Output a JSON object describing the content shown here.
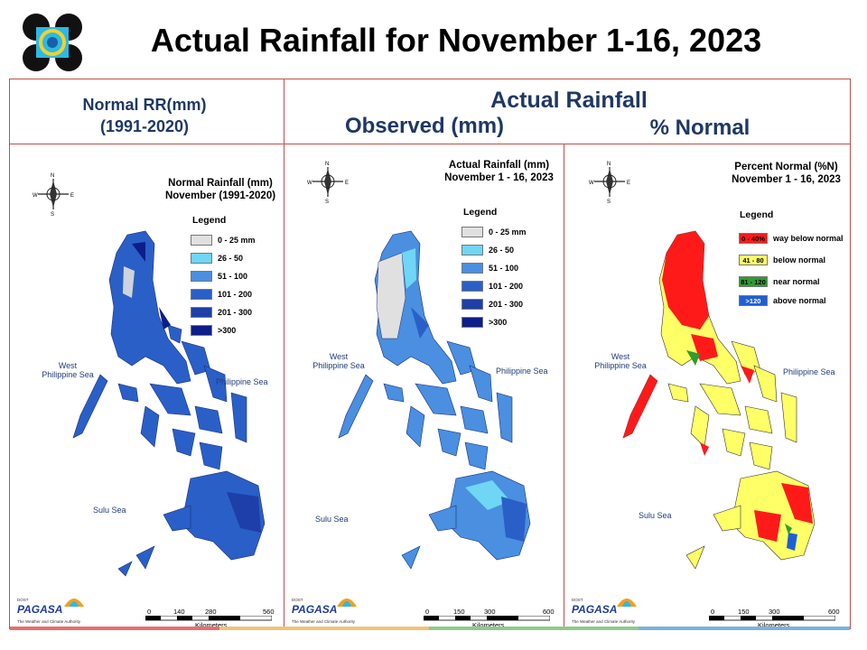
{
  "slide_title": "Actual Rainfall for November 1-16, 2023",
  "headers": {
    "normal_line1": "Normal RR(mm)",
    "normal_line2": "(1991-2020)",
    "actual": "Actual Rainfall",
    "observed": "Observed (mm)",
    "percent": "% Normal"
  },
  "panels": {
    "normal": {
      "title_line1": "Normal Rainfall (mm)",
      "title_line2": "November (1991-2020)",
      "legend_title": "Legend",
      "legend": [
        {
          "label": "0 - 25 mm",
          "color": "#e0e0e0"
        },
        {
          "label": "26 - 50",
          "color": "#6fd6f5"
        },
        {
          "label": "51 - 100",
          "color": "#4a8fe0"
        },
        {
          "label": "101 - 200",
          "color": "#2a5fc8"
        },
        {
          "label": "201 - 300",
          "color": "#1e3ea8"
        },
        {
          "label": ">300",
          "color": "#0d1d8a"
        }
      ],
      "sea_west_line1": "West",
      "sea_west_line2": "Philippine Sea",
      "sea_east": "Philippine Sea",
      "sea_sulu": "Sulu Sea",
      "scale_ticks": [
        "0",
        "140",
        "280",
        "560"
      ],
      "scale_unit": "Kilometers"
    },
    "observed": {
      "title_line1": "Actual Rainfall (mm)",
      "title_line2": "November 1 - 16, 2023",
      "legend_title": "Legend",
      "legend": [
        {
          "label": "0 - 25 mm",
          "color": "#e0e0e0"
        },
        {
          "label": "26 - 50",
          "color": "#6fd6f5"
        },
        {
          "label": "51 - 100",
          "color": "#4a8fe0"
        },
        {
          "label": "101 - 200",
          "color": "#2a5fc8"
        },
        {
          "label": "201 - 300",
          "color": "#1e3ea8"
        },
        {
          "label": ">300",
          "color": "#0d1d8a"
        }
      ],
      "sea_west_line1": "West",
      "sea_west_line2": "Philippine Sea",
      "sea_east": "Philippine Sea",
      "sea_sulu": "Sulu Sea",
      "scale_ticks": [
        "0",
        "150",
        "300",
        "600"
      ],
      "scale_unit": "Kilometers"
    },
    "percent": {
      "title_line1": "Percent Normal (%N)",
      "title_line2": "November 1 - 16, 2023",
      "legend_title": "Legend",
      "legend": [
        {
          "swatch": "0 - 40%",
          "label": "way below normal",
          "color": "#ff1a1a"
        },
        {
          "swatch": "41 - 80",
          "label": "below normal",
          "color": "#ffff66"
        },
        {
          "swatch": "81 - 120",
          "label": "near normal",
          "color": "#2e9e2e"
        },
        {
          "swatch": ">120",
          "label": "above normal",
          "color": "#1f5fd6"
        }
      ],
      "sea_west_line1": "West",
      "sea_west_line2": "Philippine Sea",
      "sea_east": "Philippine Sea",
      "sea_sulu": "Sulu Sea",
      "scale_ticks": [
        "0",
        "150",
        "300",
        "600"
      ],
      "scale_unit": "Kilometers"
    }
  },
  "compass": {
    "n": "N",
    "s": "S",
    "e": "E",
    "w": "W"
  },
  "footer": {
    "brand": "PAGASA",
    "tagline": "The Weather and Climate Authority",
    "dost": "DOST"
  },
  "colorbar": [
    "#e76f6f",
    "#f0c27a",
    "#8fc98f",
    "#7ab2e0"
  ]
}
